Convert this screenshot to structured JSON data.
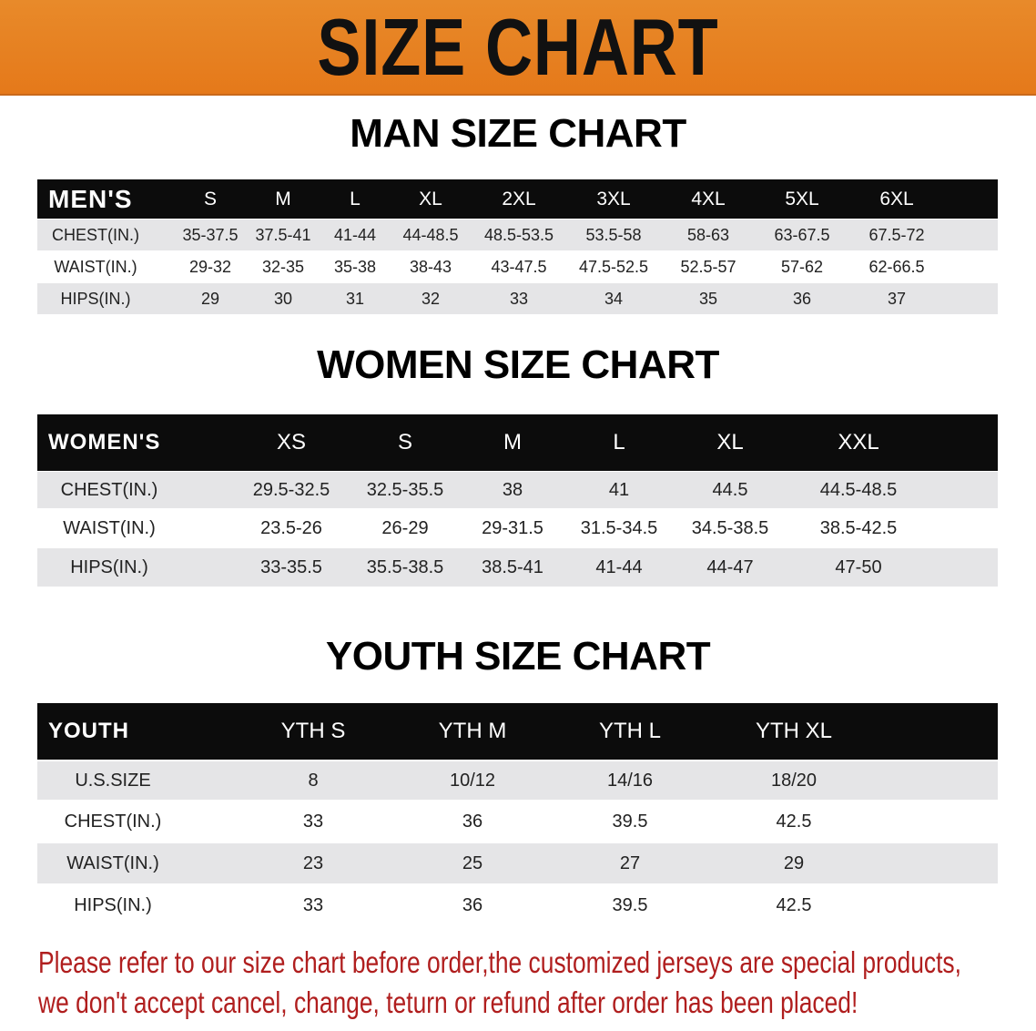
{
  "banner": {
    "title": "SIZE CHART",
    "color": "#e8821e"
  },
  "men": {
    "title": "MAN SIZE CHART",
    "header": [
      "MEN'S",
      "S",
      "M",
      "L",
      "XL",
      "2XL",
      "3XL",
      "4XL",
      "5XL",
      "6XL"
    ],
    "rows": [
      [
        "CHEST(IN.)",
        "35-37.5",
        "37.5-41",
        "41-44",
        "44-48.5",
        "48.5-53.5",
        "53.5-58",
        "58-63",
        "63-67.5",
        "67.5-72"
      ],
      [
        "WAIST(IN.)",
        "29-32",
        "32-35",
        "35-38",
        "38-43",
        "43-47.5",
        "47.5-52.5",
        "52.5-57",
        "57-62",
        "62-66.5"
      ],
      [
        "HIPS(IN.)",
        "29",
        "30",
        "31",
        "32",
        "33",
        "34",
        "35",
        "36",
        "37"
      ]
    ]
  },
  "women": {
    "title": "WOMEN SIZE CHART",
    "header": [
      "WOMEN'S",
      "XS",
      "S",
      "M",
      "L",
      "XL",
      "XXL"
    ],
    "rows": [
      [
        "CHEST(IN.)",
        "29.5-32.5",
        "32.5-35.5",
        "38",
        "41",
        "44.5",
        "44.5-48.5"
      ],
      [
        "WAIST(IN.)",
        "23.5-26",
        "26-29",
        "29-31.5",
        "31.5-34.5",
        "34.5-38.5",
        "38.5-42.5"
      ],
      [
        "HIPS(IN.)",
        "33-35.5",
        "35.5-38.5",
        "38.5-41",
        "41-44",
        "44-47",
        "47-50"
      ]
    ]
  },
  "youth": {
    "title": "YOUTH SIZE CHART",
    "header": [
      "YOUTH",
      "YTH S",
      "YTH M",
      "YTH L",
      "YTH XL"
    ],
    "rows": [
      [
        "U.S.SIZE",
        "8",
        "10/12",
        "14/16",
        "18/20"
      ],
      [
        "CHEST(IN.)",
        "33",
        "36",
        "39.5",
        "42.5"
      ],
      [
        "WAIST(IN.)",
        "23",
        "25",
        "27",
        "29"
      ],
      [
        "HIPS(IN.)",
        "33",
        "36",
        "39.5",
        "42.5"
      ]
    ]
  },
  "footer": {
    "line1": "Please refer to our size chart before order,the customized jerseys are special products,",
    "line2": "we don't accept cancel, change, teturn or refund after order has been placed!",
    "color": "#b01e1e"
  }
}
